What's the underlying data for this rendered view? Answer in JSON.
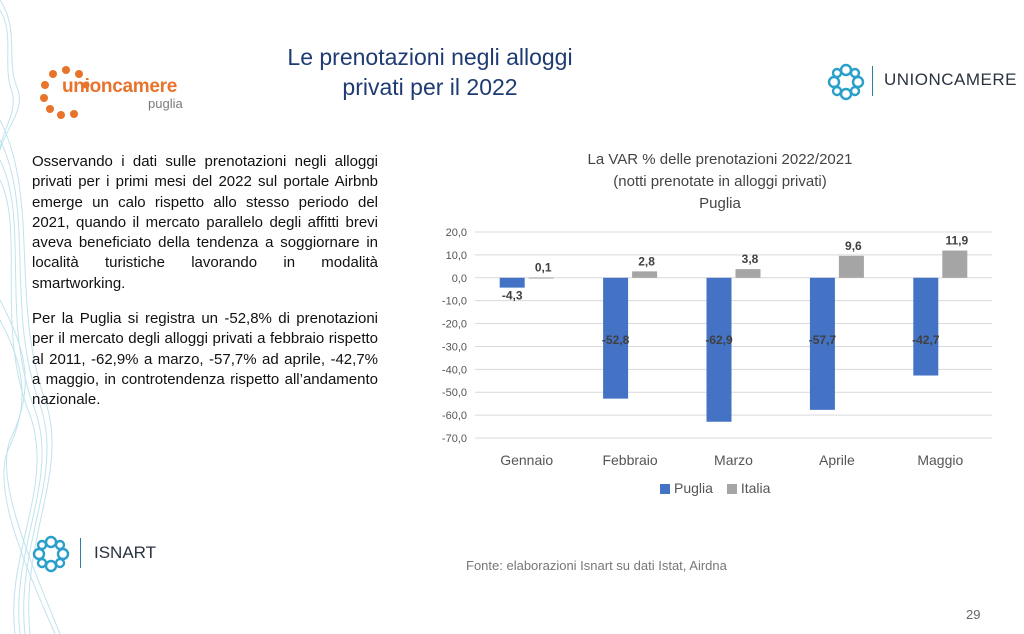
{
  "slide": {
    "title_line1": "Le prenotazioni negli alloggi",
    "title_line2": "privati per il 2022",
    "page_number": "29",
    "source": "Fonte: elaborazioni Isnart su dati Istat, Airdna"
  },
  "logos": {
    "left_name_1": "unioncamere",
    "left_name_2": "puglia",
    "right_name": "UNIONCAMERE",
    "bottom_name": "ISNART"
  },
  "body": {
    "paragraph1": "Osservando i dati sulle prenotazioni negli alloggi privati per i primi mesi del 2022 sul portale Airbnb emerge un calo rispetto allo stesso periodo del 2021, quando il mercato parallelo degli affitti brevi aveva beneficiato della tendenza a soggiornare in località turistiche lavorando in modalità smartworking.",
    "paragraph2": "Per la Puglia si registra un -52,8% di prenotazioni per il mercato degli alloggi privati a febbraio rispetto al 2011, -62,9% a marzo, -57,7% ad aprile, -42,7% a maggio, in controtendenza rispetto all’andamento nazionale."
  },
  "colors": {
    "title": "#1f3b73",
    "puglia": "#4472c4",
    "italia": "#a5a5a5",
    "accent_orange": "#e8732a",
    "logo_teal": "#2a9fc9"
  },
  "chart_data": {
    "type": "bar",
    "title_lines": [
      "La VAR % delle prenotazioni 2022/2021",
      "(notti prenotate in alloggi privati)",
      "Puglia"
    ],
    "categories": [
      "Gennaio",
      "Febbraio",
      "Marzo",
      "Aprile",
      "Maggio"
    ],
    "series": [
      {
        "name": "Puglia",
        "values": [
          -4.3,
          -52.8,
          -62.9,
          -57.7,
          -42.7
        ],
        "labels": [
          "-4,3",
          "-52,8",
          "-62,9",
          "-57,7",
          "-42,7"
        ],
        "color": "#4472c4"
      },
      {
        "name": "Italia",
        "values": [
          0.1,
          2.8,
          3.8,
          9.6,
          11.9
        ],
        "labels": [
          "0,1",
          "2,8",
          "3,8",
          "9,6",
          "11,9"
        ],
        "color": "#a5a5a5"
      }
    ],
    "ylim": [
      -70,
      20
    ],
    "yticks": [
      20,
      10,
      0,
      -10,
      -20,
      -30,
      -40,
      -50,
      -60,
      -70
    ],
    "ytick_labels": [
      "20,0",
      "10,0",
      "0,0",
      "-10,0",
      "-20,0",
      "-30,0",
      "-40,0",
      "-50,0",
      "-60,0",
      "-70,0"
    ],
    "grid": true,
    "legend_position": "bottom"
  }
}
